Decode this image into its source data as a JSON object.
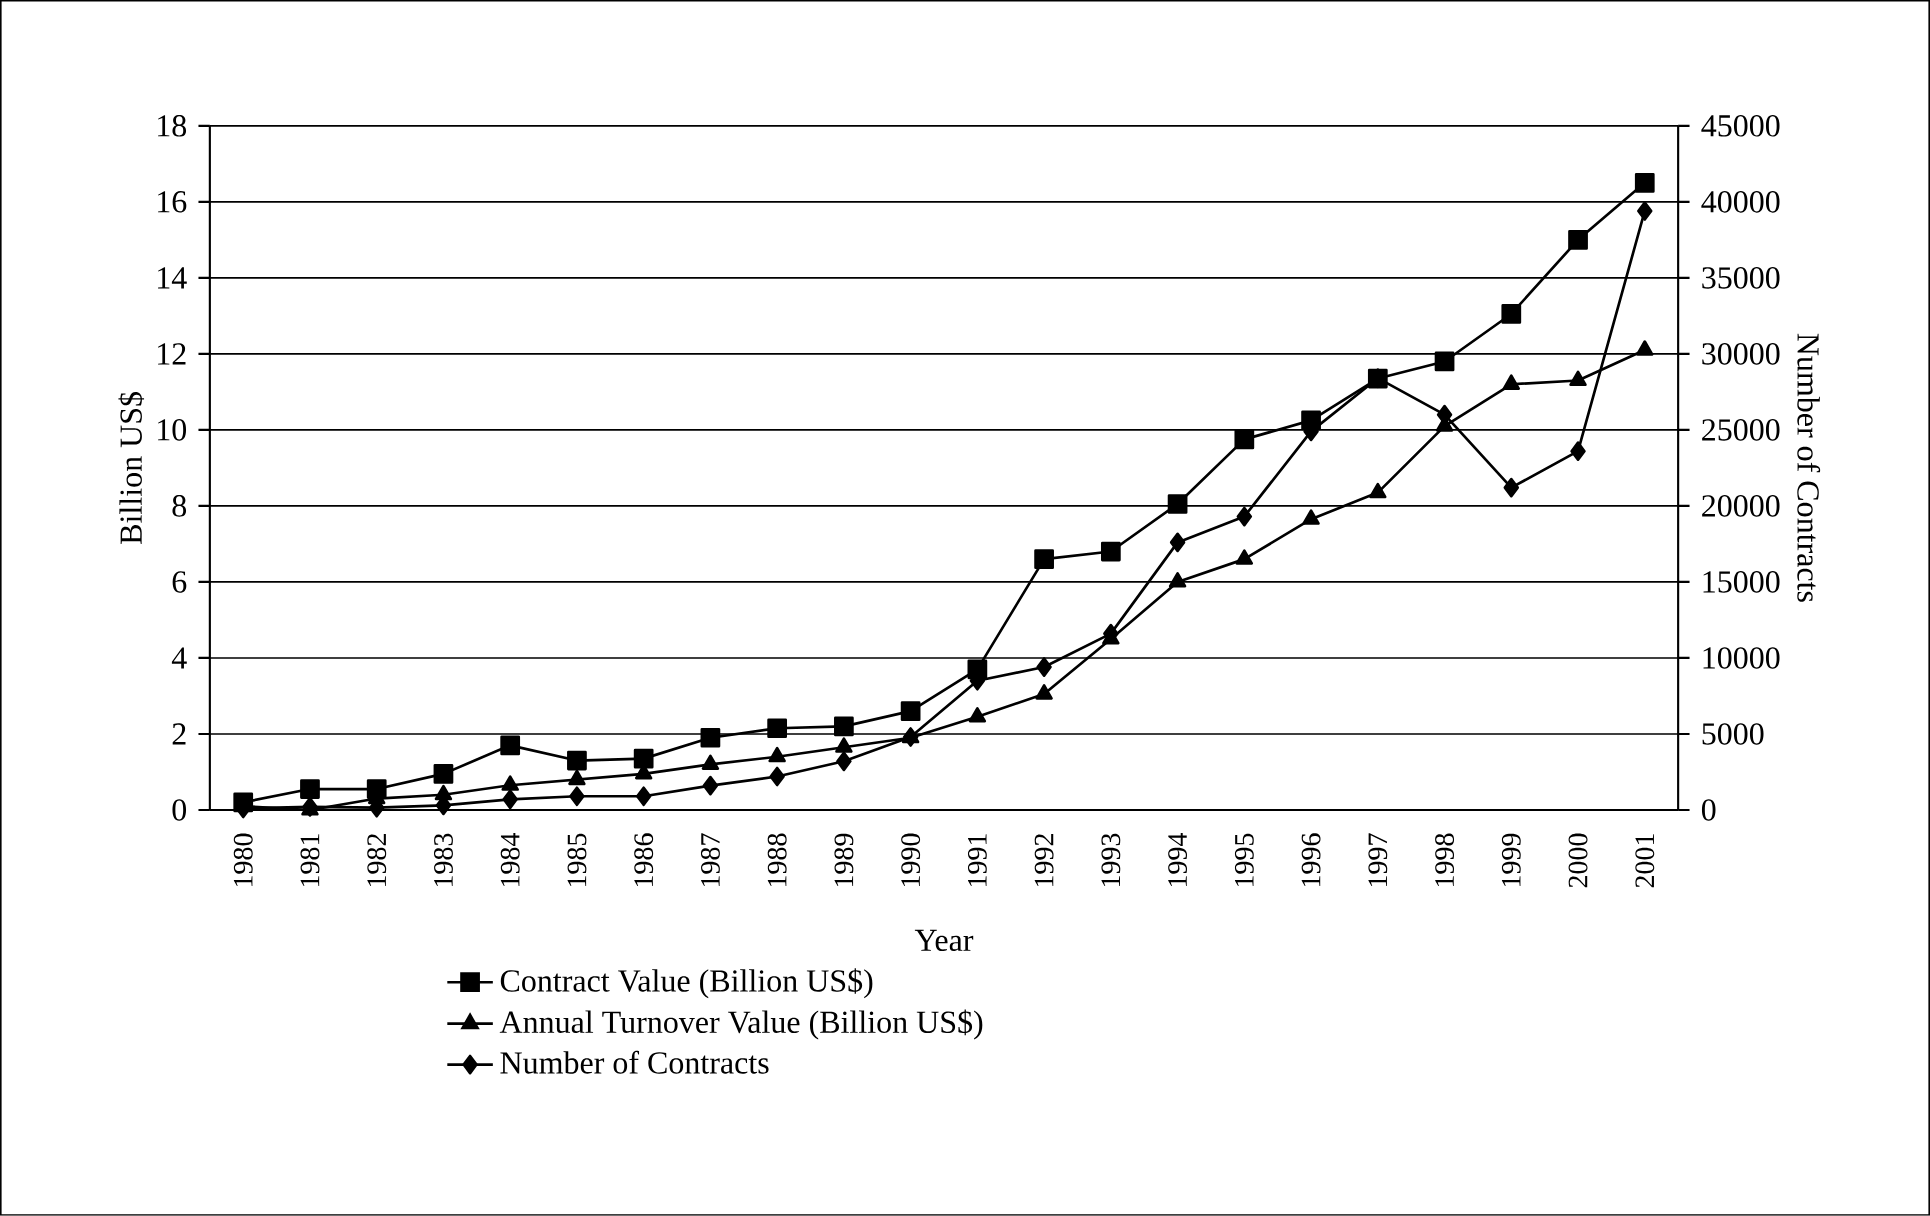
{
  "chart_data": {
    "type": "line",
    "xlabel": "Year",
    "ylabel": "Billion US$",
    "y2label": "Number of Contracts",
    "categories": [
      "1980",
      "1981",
      "1982",
      "1983",
      "1984",
      "1985",
      "1986",
      "1987",
      "1988",
      "1989",
      "1990",
      "1991",
      "1992",
      "1993",
      "1994",
      "1995",
      "1996",
      "1997",
      "1998",
      "1999",
      "2000",
      "2001"
    ],
    "series": [
      {
        "name": "Contract Value (Billion US$)",
        "color": "#000000",
        "marker": "square",
        "values": [
          0.2,
          0.55,
          0.55,
          0.95,
          1.7,
          1.3,
          1.35,
          1.9,
          2.15,
          2.2,
          2.6,
          3.7,
          6.6,
          6.8,
          8.05,
          9.75,
          10.25,
          11.35,
          11.8,
          13.05,
          15.0,
          16.5
        ]
      },
      {
        "name": "Annual Turnover  Value (Billion US$)",
        "color": "#000000",
        "marker": "triangle",
        "values": [
          0.1,
          0.0,
          0.3,
          0.4,
          0.65,
          0.8,
          0.95,
          1.2,
          1.4,
          1.65,
          1.9,
          2.45,
          3.05,
          4.5,
          6.0,
          6.6,
          7.65,
          8.35,
          10.1,
          11.2,
          11.3,
          12.1
        ]
      },
      {
        "name": "Number of Contracts",
        "color": "#000000",
        "marker": "diamond",
        "axis": "y2",
        "values": [
          100,
          200,
          150,
          300,
          700,
          900,
          900,
          1600,
          2200,
          3200,
          4800,
          8500,
          9400,
          11600,
          17600,
          19300,
          24900,
          28400,
          26000,
          21200,
          23600,
          39400
        ]
      }
    ],
    "ylim": [
      0,
      18
    ],
    "yticks": [
      0,
      2,
      4,
      6,
      8,
      10,
      12,
      14,
      16,
      18
    ],
    "y2lim": [
      0,
      45000
    ],
    "y2ticks": [
      0,
      5000,
      10000,
      15000,
      20000,
      25000,
      30000,
      35000,
      40000,
      45000
    ],
    "grid": "y",
    "legend": "bottom",
    "line_style": "solid"
  }
}
